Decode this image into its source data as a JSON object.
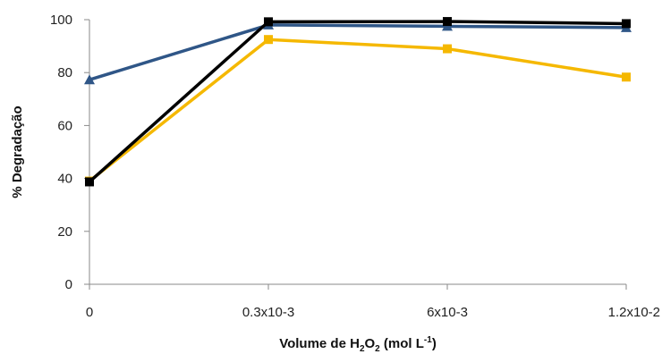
{
  "chart_data": {
    "type": "line",
    "title": "",
    "xlabel": "",
    "xlabel_parts": {
      "prefix": "Volume de H",
      "sub1": "2",
      "mid": "O",
      "sub2": "2",
      "suffix": " (mol L",
      "sup": "-1",
      "end": ")"
    },
    "ylabel": "% Degradação",
    "categories": [
      "0",
      "0.3x10-3",
      "6x10-3",
      "1.2x10-2"
    ],
    "ylim": [
      0,
      100
    ],
    "yticks": [
      0,
      20,
      40,
      60,
      80,
      100
    ],
    "grid": false,
    "legend": "none",
    "series": [
      {
        "color": "#F5B800",
        "marker": "square",
        "values": [
          39,
          92.5,
          89,
          78.3
        ]
      },
      {
        "color": "#2F5687",
        "marker": "triangle",
        "values": [
          77.3,
          98,
          97.5,
          97
        ]
      },
      {
        "color": "#000000",
        "marker": "square",
        "values": [
          38.7,
          99.2,
          99.3,
          98.5
        ]
      }
    ]
  }
}
